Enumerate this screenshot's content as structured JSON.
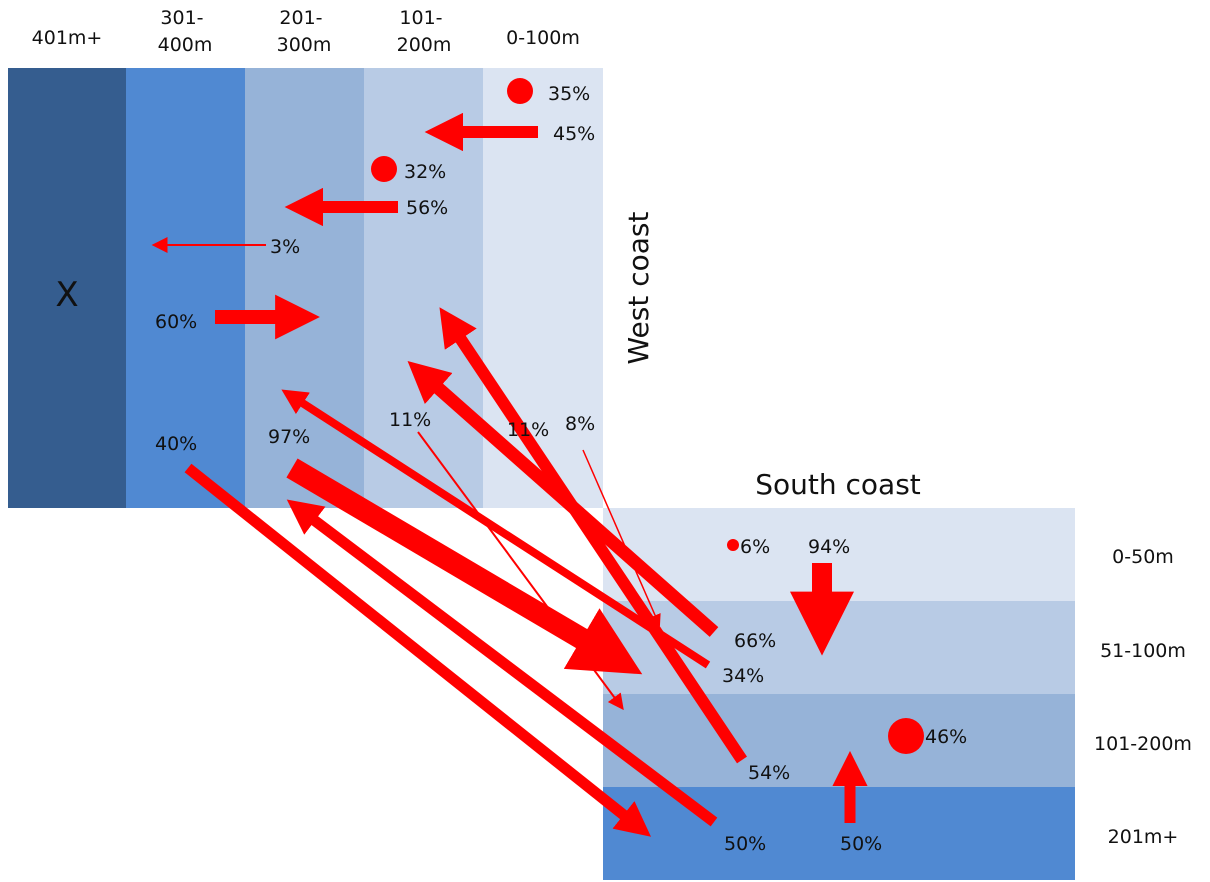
{
  "west_coast": {
    "title": "West coast",
    "bands": [
      {
        "label": "401m+",
        "color": "#355d8f"
      },
      {
        "label": "301-\n400m",
        "color": "#5089d2"
      },
      {
        "label": "201-\n300m",
        "color": "#96b3d8"
      },
      {
        "label": "101-\n200m",
        "color": "#b8cbe5"
      },
      {
        "label": "0-100m",
        "color": "#dbe4f2"
      }
    ],
    "band_mark": "X"
  },
  "south_coast": {
    "title": "South coast",
    "bands": [
      {
        "label": "0-50m",
        "color": "#dbe4f2"
      },
      {
        "label": "51-100m",
        "color": "#b8cbe5"
      },
      {
        "label": "101-200m",
        "color": "#96b3d8"
      },
      {
        "label": "201m+",
        "color": "#5089d2"
      }
    ]
  },
  "arrow_color": "#ff0000",
  "percent_labels": [
    "35%",
    "45%",
    "32%",
    "56%",
    "3%",
    "60%",
    "40%",
    "97%",
    "11%",
    "11%",
    "8%",
    "6%",
    "94%",
    "66%",
    "34%",
    "46%",
    "54%",
    "50%",
    "50%"
  ]
}
